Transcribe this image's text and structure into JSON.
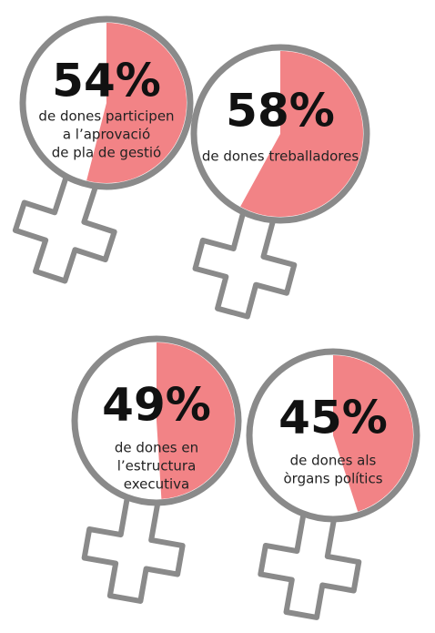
{
  "chart_data": [
    {
      "type": "pie",
      "values": [
        54
      ],
      "value_labels": [
        "54%"
      ],
      "caption": [
        "de dones participen",
        "a l’aprovació",
        "de pla de gestió"
      ],
      "color": "#f28386"
    },
    {
      "type": "pie",
      "values": [
        58
      ],
      "value_labels": [
        "58%"
      ],
      "caption": [
        "de dones treballadores"
      ],
      "color": "#f28386"
    },
    {
      "type": "pie",
      "values": [
        49
      ],
      "value_labels": [
        "49%"
      ],
      "caption": [
        "de dones en",
        "l’estructura",
        "executiva"
      ],
      "color": "#f28386"
    },
    {
      "type": "pie",
      "values": [
        45
      ],
      "value_labels": [
        "45%"
      ],
      "caption": [
        "de dones als",
        "òrgans polítics"
      ],
      "color": "#f28386"
    }
  ]
}
